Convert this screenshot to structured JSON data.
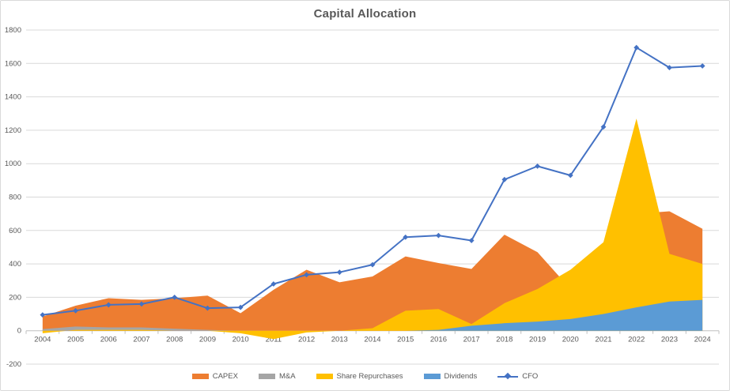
{
  "title": "Capital Allocation",
  "chart_data": {
    "type": "area",
    "subtype": "overlapping-areas-with-line",
    "title": "Capital Allocation",
    "categories": [
      "2004",
      "2005",
      "2006",
      "2007",
      "2008",
      "2009",
      "2010",
      "2011",
      "2012",
      "2013",
      "2014",
      "2015",
      "2016",
      "2017",
      "2018",
      "2019",
      "2020",
      "2021",
      "2022",
      "2023",
      "2024"
    ],
    "series": [
      {
        "name": "CAPEX",
        "type": "area",
        "color": "#ED7D31",
        "values": [
          85,
          150,
          195,
          185,
          195,
          210,
          105,
          245,
          365,
          290,
          325,
          445,
          405,
          370,
          575,
          470,
          250,
          400,
          700,
          715,
          610
        ]
      },
      {
        "name": "M&A",
        "type": "area",
        "color": "#A5A5A5",
        "values": [
          10,
          25,
          20,
          20,
          12,
          5,
          0,
          0,
          0,
          0,
          0,
          0,
          0,
          0,
          0,
          0,
          0,
          0,
          0,
          0,
          0
        ]
      },
      {
        "name": "Share Repurchases",
        "type": "area",
        "color": "#FFC000",
        "values": [
          -15,
          5,
          5,
          5,
          0,
          0,
          -15,
          -50,
          -10,
          0,
          15,
          120,
          130,
          40,
          165,
          250,
          365,
          530,
          1270,
          460,
          400
        ]
      },
      {
        "name": "Dividends",
        "type": "area",
        "color": "#5B9BD5",
        "values": [
          0,
          0,
          0,
          0,
          0,
          0,
          0,
          0,
          0,
          0,
          0,
          0,
          5,
          30,
          45,
          55,
          70,
          100,
          140,
          175,
          185
        ]
      },
      {
        "name": "CFO",
        "type": "line",
        "color": "#4472C4",
        "marker": "diamond",
        "values": [
          95,
          120,
          155,
          160,
          200,
          135,
          140,
          280,
          335,
          350,
          395,
          560,
          570,
          540,
          905,
          985,
          930,
          1220,
          1695,
          1575,
          1585
        ]
      }
    ],
    "ylim": [
      -200,
      1800
    ],
    "ytick_step": 200,
    "y_tick_labels": [
      "-200",
      "0",
      "200",
      "400",
      "600",
      "800",
      "1000",
      "1200",
      "1400",
      "1600",
      "1800"
    ],
    "grid": true,
    "legend_position": "bottom",
    "legend_items": [
      "CAPEX",
      "M&A",
      "Share Repurchases",
      "Dividends",
      "CFO"
    ]
  },
  "colors": {
    "title_text": "#595959",
    "axis_text": "#595959",
    "gridline": "#D9D9D9",
    "axis_line": "#BFBFBF",
    "background": "#FFFFFF",
    "border": "#D9D9D9"
  }
}
